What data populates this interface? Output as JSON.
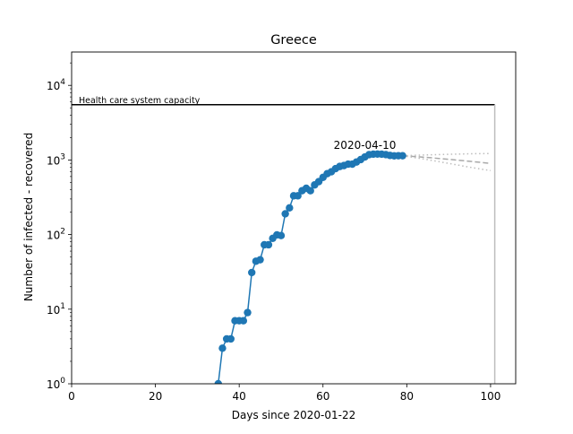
{
  "chart_data": {
    "type": "line",
    "title": "Greece",
    "xlabel": "Days since 2020-01-22",
    "ylabel": "Number of infected - recovered",
    "xlim": [
      0,
      106
    ],
    "ylim": [
      1,
      28000
    ],
    "yscale": "log",
    "xticks": [
      0,
      20,
      40,
      60,
      80,
      100
    ],
    "xtick_labels": [
      "0",
      "20",
      "40",
      "60",
      "80",
      "100"
    ],
    "yticks": [
      1,
      10,
      100,
      1000,
      10000
    ],
    "ytick_labels": [
      {
        "base": "10",
        "exp": "0"
      },
      {
        "base": "10",
        "exp": "1"
      },
      {
        "base": "10",
        "exp": "2"
      },
      {
        "base": "10",
        "exp": "3"
      },
      {
        "base": "10",
        "exp": "4"
      }
    ],
    "grid": false,
    "colors": {
      "observed": "#1f77b4",
      "capacity": "#000000",
      "projection_mean": "#a9a9a9",
      "projection_bounds": "#bdbdbd",
      "end_marker": "#bdbdbd"
    },
    "capacity": {
      "label": "Health care system capacity",
      "value": 5500,
      "x_start": 0,
      "x_end": 101
    },
    "annotation": {
      "text": "2020-04-10",
      "x": 70,
      "y": 1200
    },
    "series": [
      {
        "role": "observed",
        "x": [
          35,
          36,
          37,
          38,
          39,
          40,
          41,
          42,
          43,
          44,
          45,
          46,
          47,
          48,
          49,
          50,
          51,
          52,
          53,
          54,
          55,
          56,
          57,
          58,
          59,
          60,
          61,
          62,
          63,
          64,
          65,
          66,
          67,
          68,
          69,
          70,
          71,
          72,
          73,
          74,
          75,
          76,
          77,
          78,
          79
        ],
        "y": [
          1,
          3,
          4,
          4,
          7,
          7,
          7,
          9,
          31,
          44,
          46,
          73,
          73,
          89,
          99,
          97,
          190,
          228,
          331,
          331,
          387,
          417,
          387,
          463,
          513,
          584,
          655,
          695,
          765,
          819,
          842,
          879,
          879,
          940,
          1012,
          1097,
          1178,
          1195,
          1200,
          1195,
          1180,
          1150,
          1135,
          1140,
          1140
        ]
      },
      {
        "role": "projection_mean",
        "x": [
          79,
          85,
          90,
          95,
          100
        ],
        "y": [
          1140,
          1080,
          1020,
          960,
          900
        ]
      },
      {
        "role": "projection_upper",
        "x": [
          79,
          85,
          90,
          95,
          100
        ],
        "y": [
          1140,
          1170,
          1190,
          1210,
          1220
        ]
      },
      {
        "role": "projection_lower",
        "x": [
          79,
          85,
          90,
          95,
          100
        ],
        "y": [
          1140,
          1010,
          900,
          800,
          720
        ]
      }
    ],
    "end_marker_x": 101
  }
}
